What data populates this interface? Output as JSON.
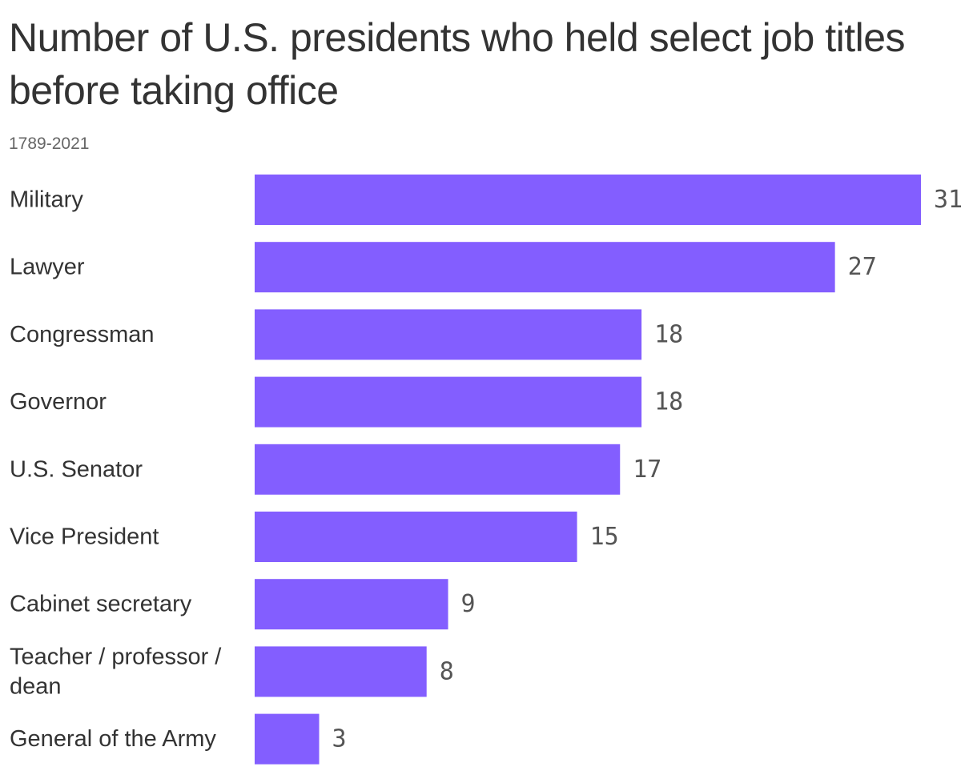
{
  "title": "Number of U.S. presidents who held select job titles before taking office",
  "subtitle": "1789-2021",
  "colors": {
    "bar": "#835eff",
    "label": "#333333",
    "value": "#555555"
  },
  "chart_data": {
    "type": "bar",
    "orientation": "horizontal",
    "title": "Number of U.S. presidents who held select job titles before taking office",
    "subtitle": "1789-2021",
    "categories": [
      [
        "Military"
      ],
      [
        "Lawyer"
      ],
      [
        "Congressman"
      ],
      [
        "Governor"
      ],
      [
        "U.S. Senator"
      ],
      [
        "Vice President"
      ],
      [
        "Cabinet secretary"
      ],
      [
        "Teacher / professor /",
        "dean"
      ],
      [
        "General of the Army"
      ]
    ],
    "values": [
      31,
      27,
      18,
      18,
      17,
      15,
      9,
      8,
      3
    ],
    "xlim": [
      0,
      31
    ],
    "grid": false,
    "legend": "none",
    "data_labels": true
  }
}
